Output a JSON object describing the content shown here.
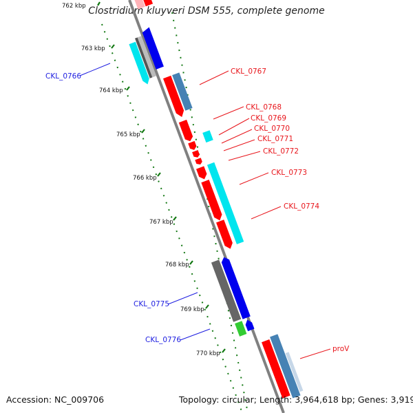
{
  "title": "Clostridium kluyveri DSM 555, complete genome",
  "accession_text": "Accession: NC_009706",
  "topology_text": "Topology: circular; Length: 3,964,618 bp; Genes: 3,919",
  "scale_labels": [
    "762 kbp",
    "763 kbp",
    "764 kbp",
    "765 kbp",
    "766 kbp",
    "767 kbp",
    "768 kbp",
    "769 kbp",
    "770 kbp"
  ],
  "colors": {
    "forward_cds": "#ff0000",
    "forward_orf": "#4682b4",
    "reverse_cds": "#0000ee",
    "reverse_orf": "#00e5ee",
    "rna": "#808080",
    "pseudo": "#33cc33",
    "backbone": "#808080",
    "tick_marks": "#117711",
    "forward_label": "#e8141a",
    "reverse_label": "#1c1ce0"
  },
  "gene_labels": {
    "forward_strand": [
      "CKL_0767",
      "CKL_0768",
      "CKL_0769",
      "CKL_0770",
      "CKL_0771",
      "CKL_0772",
      "CKL_0773",
      "CKL_0774",
      "proV"
    ],
    "reverse_strand": [
      "CKL_0766",
      "CKL_0775",
      "CKL_0776"
    ]
  }
}
